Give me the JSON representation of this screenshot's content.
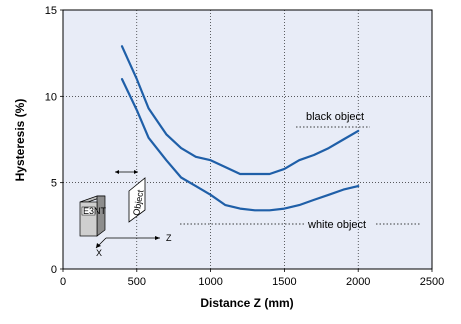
{
  "chart_data": {
    "type": "line",
    "xlabel": "Distance Z (mm)",
    "ylabel": "Hysteresis (%)",
    "xlim": [
      0,
      2500
    ],
    "ylim": [
      0,
      15
    ],
    "xticks": [
      "0",
      "500",
      "1000",
      "1500",
      "2000",
      "2500"
    ],
    "yticks": [
      "0",
      "5",
      "10",
      "15"
    ],
    "grid": true,
    "series": [
      {
        "name": "black object",
        "color": "#1f5fa8",
        "x": [
          400,
          500,
          580,
          700,
          800,
          900,
          1000,
          1100,
          1200,
          1300,
          1400,
          1500,
          1600,
          1700,
          1800,
          1900,
          2000
        ],
        "y": [
          12.9,
          11.0,
          9.3,
          7.8,
          7.0,
          6.5,
          6.3,
          5.9,
          5.5,
          5.5,
          5.5,
          5.8,
          6.3,
          6.6,
          7.0,
          7.5,
          8.0
        ]
      },
      {
        "name": "white object",
        "color": "#1f5fa8",
        "x": [
          400,
          500,
          580,
          700,
          800,
          900,
          1000,
          1100,
          1200,
          1300,
          1400,
          1500,
          1600,
          1700,
          1800,
          1900,
          2000
        ],
        "y": [
          11.0,
          9.2,
          7.6,
          6.3,
          5.3,
          4.8,
          4.3,
          3.7,
          3.5,
          3.4,
          3.4,
          3.5,
          3.7,
          4.0,
          4.3,
          4.6,
          4.8
        ]
      }
    ],
    "annotations": [
      "black object",
      "white object"
    ],
    "inset": {
      "sensor_label": "E3NT",
      "object_label": "Object",
      "axis_labels": [
        "X",
        "Z"
      ]
    }
  }
}
